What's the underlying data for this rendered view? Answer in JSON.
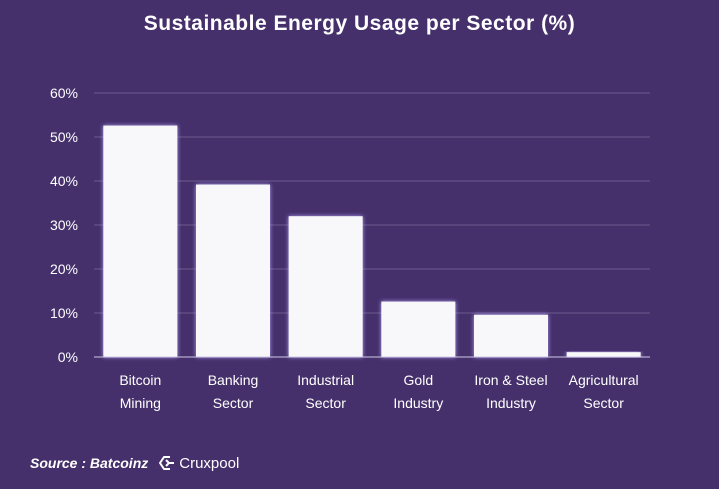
{
  "chart_data": {
    "type": "bar",
    "title": "Sustainable Energy Usage per Sector (%)",
    "categories": [
      [
        "Bitcoin",
        "Mining"
      ],
      [
        "Banking",
        "Sector"
      ],
      [
        "Industrial",
        "Sector"
      ],
      [
        "Gold",
        "Industry"
      ],
      [
        "Iron & Steel",
        "Industry"
      ],
      [
        "Agricultural",
        "Sector"
      ]
    ],
    "values": [
      52.6,
      39.2,
      32.0,
      12.6,
      9.6,
      1.1
    ],
    "ylim": [
      0,
      60
    ],
    "yticks": [
      "0%",
      "10%",
      "20%",
      "30%",
      "40%",
      "50%",
      "60%"
    ],
    "ytick_values": [
      0,
      10,
      20,
      30,
      40,
      50,
      60
    ],
    "grid": true,
    "bar_color": "#f8f8fb",
    "bar_glow": "#b9a6ff"
  },
  "footer": {
    "source": "Source : Batcoinz",
    "brand_icon": "cruxpool-logo-icon",
    "brand_name": "Cruxpool"
  },
  "colors": {
    "background": "#45306b",
    "gridline": "#6a5a8e",
    "axis": "#cfc7e6"
  }
}
